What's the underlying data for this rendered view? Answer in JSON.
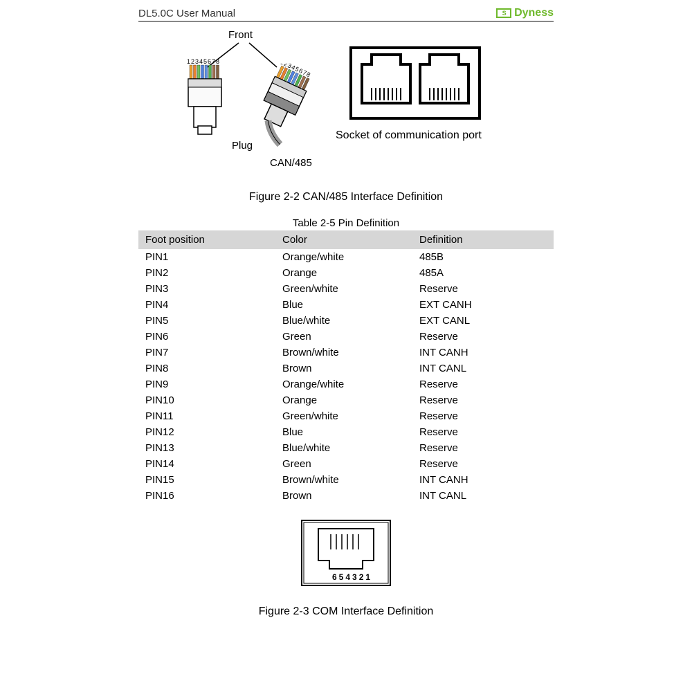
{
  "header": {
    "title": "DL5.0C User Manual",
    "brand": "Dyness"
  },
  "figure2_2": {
    "front_label": "Front",
    "plug_label": "Plug",
    "type_label": "CAN/485",
    "socket_label": "Socket of communication port",
    "pin_numbers": "12345678",
    "caption": "Figure 2-2 CAN/485 Interface Definition"
  },
  "table": {
    "title": "Table 2-5 Pin Definition",
    "columns": [
      "Foot position",
      "Color",
      "Definition"
    ],
    "rows": [
      [
        "PIN1",
        "Orange/white",
        "485B"
      ],
      [
        "PIN2",
        "Orange",
        "485A"
      ],
      [
        "PIN3",
        "Green/white",
        "Reserve"
      ],
      [
        "PIN4",
        "Blue",
        "EXT CANH"
      ],
      [
        "PIN5",
        "Blue/white",
        "EXT CANL"
      ],
      [
        "PIN6",
        "Green",
        "Reserve"
      ],
      [
        "PIN7",
        "Brown/white",
        "INT CANH"
      ],
      [
        "PIN8",
        "Brown",
        "INT CANL"
      ],
      [
        "PIN9",
        "Orange/white",
        "Reserve"
      ],
      [
        "PIN10",
        "Orange",
        "Reserve"
      ],
      [
        "PIN11",
        "Green/white",
        "Reserve"
      ],
      [
        "PIN12",
        "Blue",
        "Reserve"
      ],
      [
        "PIN13",
        "Blue/white",
        "Reserve"
      ],
      [
        "PIN14",
        "Green",
        "Reserve"
      ],
      [
        "PIN15",
        "Brown/white",
        "INT CANH"
      ],
      [
        "PIN16",
        "Brown",
        "INT CANL"
      ]
    ],
    "header_bg": "#d6d6d6"
  },
  "figure2_3": {
    "pin_numbers": "654321",
    "caption": "Figure 2-3 COM Interface Definition"
  },
  "colors": {
    "brand": "#6fb92c",
    "text": "#000000",
    "rule": "#888888"
  },
  "wire_colors": [
    "#e8a030",
    "#e88030",
    "#70c060",
    "#5080e0",
    "#6090e0",
    "#50b050",
    "#a07050",
    "#806040"
  ]
}
